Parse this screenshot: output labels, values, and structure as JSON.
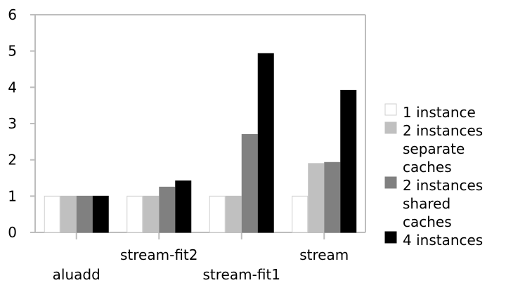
{
  "chart_data": {
    "type": "bar",
    "categories": [
      "aluadd",
      "stream-fit2",
      "stream-fit1",
      "stream"
    ],
    "series": [
      {
        "name": "1 instance",
        "name_lines": [
          "1 instance"
        ],
        "color": "#ffffff",
        "values": [
          1,
          1,
          1,
          1
        ]
      },
      {
        "name": "2 instances separate caches",
        "name_lines": [
          "2 instances",
          "separate",
          "caches"
        ],
        "color": "#c0c0c0",
        "values": [
          1,
          1,
          1,
          1.9
        ]
      },
      {
        "name": "2 instances shared caches",
        "name_lines": [
          "2 instances",
          "shared",
          "caches"
        ],
        "color": "#808080",
        "values": [
          1,
          1.25,
          2.7,
          1.93
        ]
      },
      {
        "name": "4 instances",
        "name_lines": [
          "4 instances"
        ],
        "color": "#000000",
        "values": [
          1,
          1.42,
          4.93,
          3.92
        ]
      }
    ],
    "y_ticks": [
      "0",
      "1",
      "2",
      "3",
      "4",
      "5",
      "6"
    ],
    "ylim": [
      0,
      6
    ],
    "title": "",
    "xlabel": "",
    "ylabel": "",
    "legend_position": "right",
    "grid": false,
    "category_label_rows": [
      "low",
      "high",
      "low",
      "high"
    ]
  }
}
